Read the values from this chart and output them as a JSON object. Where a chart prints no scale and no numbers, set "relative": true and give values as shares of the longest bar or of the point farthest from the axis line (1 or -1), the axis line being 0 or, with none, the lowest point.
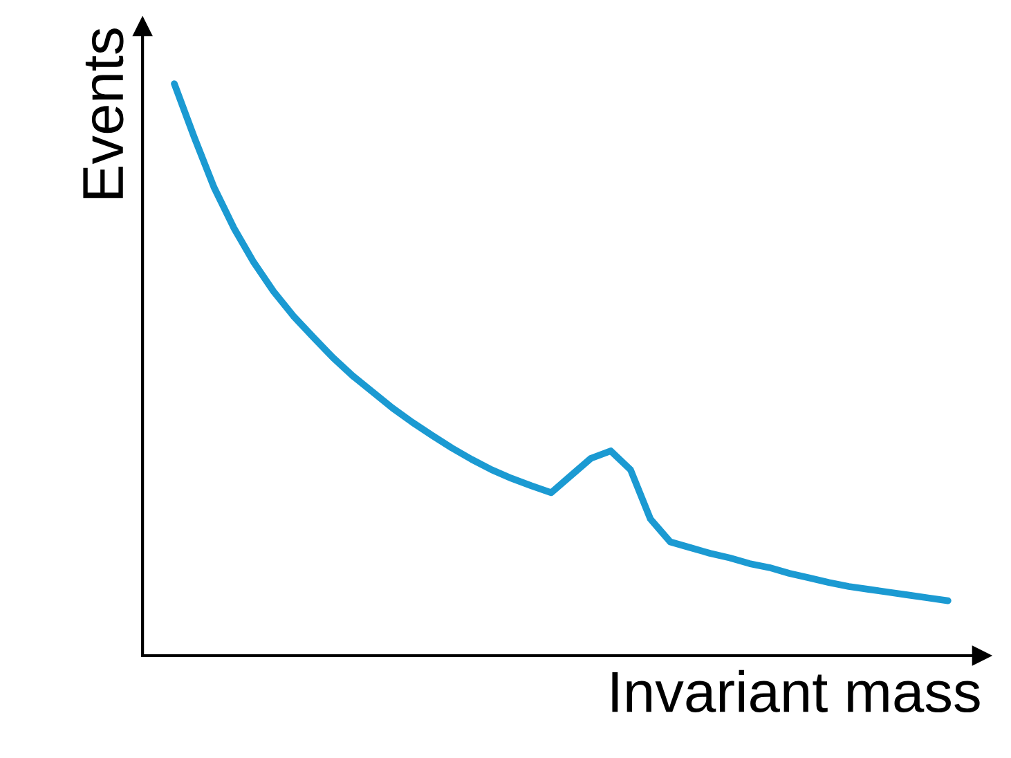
{
  "chart_data": {
    "type": "line",
    "relative": true,
    "xlabel": "Invariant mass",
    "ylabel": "Events",
    "legend": false,
    "marker": "none",
    "line_style": "solid",
    "categories": [
      null,
      null,
      null,
      null,
      null,
      null,
      null,
      null,
      null,
      null,
      null,
      null,
      null,
      null,
      null,
      null,
      null,
      null,
      null,
      null,
      null,
      null,
      null,
      null,
      null,
      null,
      null,
      null,
      null,
      null,
      null,
      null,
      null,
      null,
      null,
      null,
      null,
      null,
      null,
      null
    ],
    "series": [
      {
        "color": "#1b9ad2",
        "values": [
          1.0,
          0.907,
          0.819,
          0.748,
          0.688,
          0.637,
          0.594,
          0.557,
          0.521,
          0.489,
          0.461,
          0.433,
          0.408,
          0.385,
          0.363,
          0.343,
          0.325,
          0.31,
          0.297,
          0.285,
          0.315,
          0.345,
          0.358,
          0.325,
          0.239,
          0.199,
          0.189,
          0.179,
          0.171,
          0.161,
          0.154,
          0.144,
          0.136,
          0.128,
          0.121,
          0.116,
          0.111,
          0.106,
          0.101,
          0.096
        ]
      }
    ]
  }
}
